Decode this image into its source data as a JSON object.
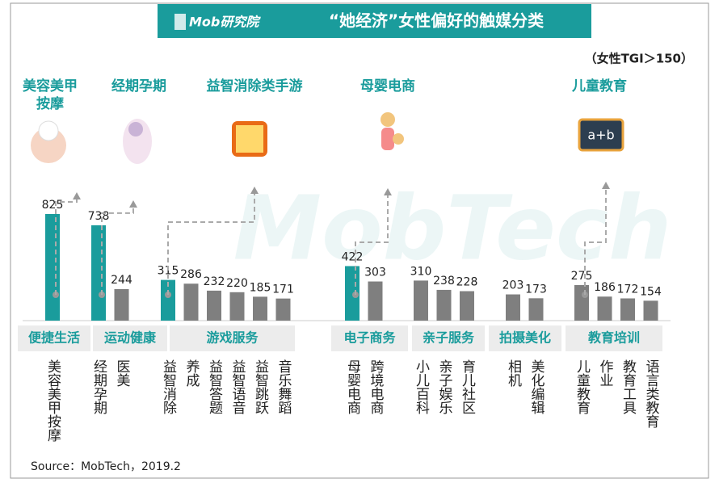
{
  "chart_data": {
    "type": "bar",
    "logo": "Mob研究院",
    "title": "“她经济”女性偏好的触媒分类",
    "subtitle": "（女性TGI＞150）",
    "color": "#7f7f7f",
    "highlight_color": "#1a9c9c",
    "groups": [
      {
        "name": "便捷生活",
        "callout": "美容美甲按摩",
        "highlight": true,
        "categories": [
          "美容美甲按摩"
        ],
        "values": [
          825
        ]
      },
      {
        "name": "运动健康",
        "callout": "经期孕期",
        "highlight": true,
        "categories": [
          "经期孕期",
          "医美"
        ],
        "values": [
          738,
          244
        ]
      },
      {
        "name": "游戏服务",
        "callout": "益智消除类手游",
        "highlight": true,
        "categories": [
          "益智消除",
          "养成",
          "益智答题",
          "益智语音",
          "益智跳跃",
          "音乐舞蹈"
        ],
        "values": [
          315,
          286,
          232,
          220,
          185,
          171
        ]
      },
      {
        "name": "电子商务",
        "callout": "母婴电商",
        "highlight": true,
        "categories": [
          "母婴电商",
          "跨境电商"
        ],
        "values": [
          422,
          303
        ]
      },
      {
        "name": "亲子服务",
        "categories": [
          "小儿百科",
          "亲子娱乐",
          "育儿社区"
        ],
        "values": [
          310,
          238,
          228
        ]
      },
      {
        "name": "拍摄美化",
        "categories": [
          "相机",
          "美化编辑"
        ],
        "values": [
          203,
          173
        ]
      },
      {
        "name": "教育培训",
        "callout": "儿童教育",
        "highlight": false,
        "categories": [
          "儿童教育",
          "作业",
          "教育工具",
          "语言类教育"
        ],
        "values": [
          275,
          186,
          172,
          154
        ]
      }
    ],
    "source": "Source：MobTech，2019.2"
  }
}
